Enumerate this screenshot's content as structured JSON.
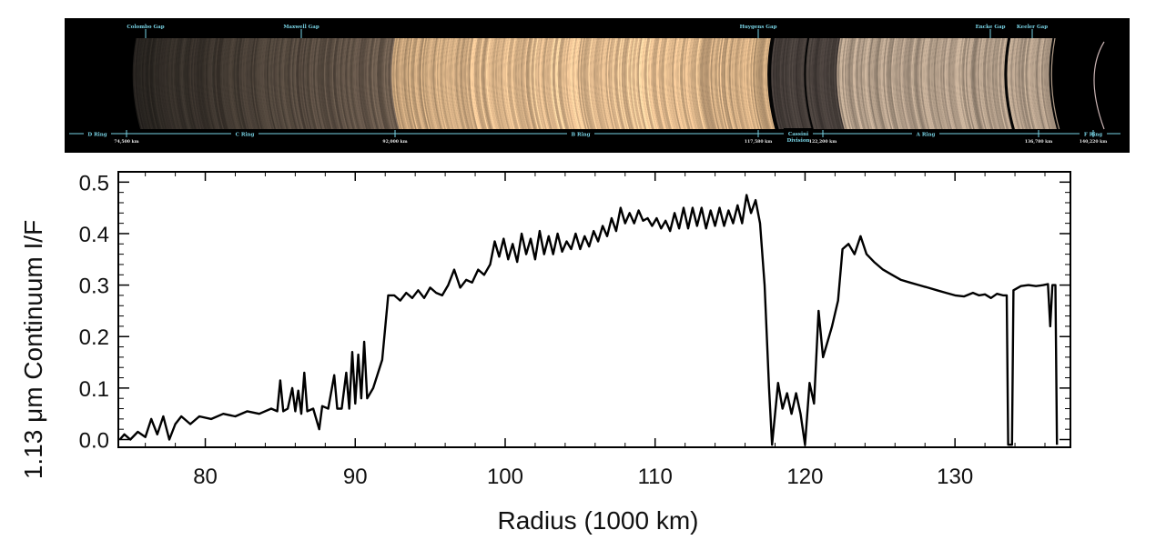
{
  "ring_image": {
    "gaps": [
      {
        "label": "Colombo Gap",
        "x": 77.8
      },
      {
        "label": "Maxwell Gap",
        "x": 87.5
      },
      {
        "label": "Huygens Gap",
        "x": 117.7
      },
      {
        "label": "Encke Gap",
        "x": 133.6
      },
      {
        "label": "Keeler Gap",
        "x": 136.5
      }
    ],
    "rings": [
      {
        "label": "D Ring",
        "x": 74.2
      },
      {
        "label": "C Ring",
        "x": 83.5
      },
      {
        "label": "B Ring",
        "x": 104.5
      },
      {
        "label": "Cassini Division",
        "x": 119.2
      },
      {
        "label": "A Ring",
        "x": 129.5
      },
      {
        "label": "F Ring",
        "x": 140.2
      }
    ],
    "radius_marks": [
      {
        "label": "74,500 km",
        "x": 74.5
      },
      {
        "label": "92,000 km",
        "x": 92.0
      },
      {
        "label": "117,580 km",
        "x": 117.58
      },
      {
        "label": "122,200 km",
        "x": 122.2
      },
      {
        "label": "136,780 km",
        "x": 136.78
      },
      {
        "label": "140,220 km",
        "x": 140.22
      }
    ],
    "colors": {
      "background": "#000000",
      "label": "#79d4e6",
      "tick_label": "#e8e8e8"
    }
  },
  "chart_data": {
    "type": "line",
    "xlabel": "Radius (1000 km)",
    "ylabel": "1.13 μm Continuum I/F",
    "xlim": [
      74.2,
      137.7
    ],
    "ylim": [
      -0.015,
      0.52
    ],
    "xticks": [
      80,
      90,
      100,
      110,
      120,
      130
    ],
    "yticks": [
      0.0,
      0.1,
      0.2,
      0.3,
      0.4,
      0.5
    ],
    "ytick_labels": [
      "0.0",
      "0.1",
      "0.2",
      "0.3",
      "0.4",
      "0.5"
    ],
    "grid": false,
    "series": [
      {
        "color": "#000000",
        "points": [
          [
            74.3,
            0.0
          ],
          [
            74.6,
            0.01
          ],
          [
            75.0,
            0.0
          ],
          [
            75.5,
            0.015
          ],
          [
            76.0,
            0.005
          ],
          [
            76.4,
            0.04
          ],
          [
            76.8,
            0.01
          ],
          [
            77.2,
            0.045
          ],
          [
            77.6,
            0.0
          ],
          [
            78.0,
            0.03
          ],
          [
            78.4,
            0.045
          ],
          [
            79.0,
            0.03
          ],
          [
            79.6,
            0.045
          ],
          [
            80.4,
            0.04
          ],
          [
            81.2,
            0.05
          ],
          [
            82.0,
            0.045
          ],
          [
            82.8,
            0.055
          ],
          [
            83.6,
            0.05
          ],
          [
            84.4,
            0.06
          ],
          [
            84.8,
            0.055
          ],
          [
            85.0,
            0.115
          ],
          [
            85.2,
            0.055
          ],
          [
            85.5,
            0.06
          ],
          [
            85.8,
            0.1
          ],
          [
            86.0,
            0.055
          ],
          [
            86.2,
            0.095
          ],
          [
            86.4,
            0.05
          ],
          [
            86.6,
            0.13
          ],
          [
            86.8,
            0.055
          ],
          [
            87.2,
            0.06
          ],
          [
            87.6,
            0.02
          ],
          [
            87.8,
            0.065
          ],
          [
            88.2,
            0.06
          ],
          [
            88.6,
            0.125
          ],
          [
            88.8,
            0.06
          ],
          [
            89.1,
            0.06
          ],
          [
            89.4,
            0.13
          ],
          [
            89.6,
            0.06
          ],
          [
            89.8,
            0.17
          ],
          [
            90.0,
            0.07
          ],
          [
            90.2,
            0.165
          ],
          [
            90.4,
            0.08
          ],
          [
            90.6,
            0.19
          ],
          [
            90.8,
            0.08
          ],
          [
            91.2,
            0.1
          ],
          [
            91.8,
            0.155
          ],
          [
            92.2,
            0.28
          ],
          [
            92.6,
            0.28
          ],
          [
            93.0,
            0.27
          ],
          [
            93.4,
            0.285
          ],
          [
            93.8,
            0.275
          ],
          [
            94.2,
            0.29
          ],
          [
            94.6,
            0.275
          ],
          [
            95.0,
            0.295
          ],
          [
            95.4,
            0.285
          ],
          [
            95.8,
            0.28
          ],
          [
            96.2,
            0.3
          ],
          [
            96.6,
            0.33
          ],
          [
            97.0,
            0.295
          ],
          [
            97.4,
            0.31
          ],
          [
            97.8,
            0.305
          ],
          [
            98.2,
            0.33
          ],
          [
            98.6,
            0.32
          ],
          [
            99.0,
            0.34
          ],
          [
            99.3,
            0.385
          ],
          [
            99.6,
            0.355
          ],
          [
            99.9,
            0.39
          ],
          [
            100.2,
            0.35
          ],
          [
            100.5,
            0.38
          ],
          [
            100.8,
            0.345
          ],
          [
            101.1,
            0.4
          ],
          [
            101.4,
            0.36
          ],
          [
            101.7,
            0.39
          ],
          [
            102.0,
            0.35
          ],
          [
            102.3,
            0.405
          ],
          [
            102.6,
            0.36
          ],
          [
            102.9,
            0.395
          ],
          [
            103.2,
            0.36
          ],
          [
            103.5,
            0.4
          ],
          [
            103.8,
            0.365
          ],
          [
            104.1,
            0.385
          ],
          [
            104.4,
            0.37
          ],
          [
            104.7,
            0.4
          ],
          [
            105.0,
            0.37
          ],
          [
            105.3,
            0.395
          ],
          [
            105.6,
            0.375
          ],
          [
            105.9,
            0.405
          ],
          [
            106.2,
            0.385
          ],
          [
            106.5,
            0.415
          ],
          [
            106.8,
            0.395
          ],
          [
            107.1,
            0.43
          ],
          [
            107.4,
            0.405
          ],
          [
            107.7,
            0.45
          ],
          [
            108.0,
            0.42
          ],
          [
            108.3,
            0.44
          ],
          [
            108.6,
            0.42
          ],
          [
            108.9,
            0.445
          ],
          [
            109.2,
            0.425
          ],
          [
            109.5,
            0.43
          ],
          [
            109.8,
            0.415
          ],
          [
            110.1,
            0.43
          ],
          [
            110.4,
            0.41
          ],
          [
            110.7,
            0.425
          ],
          [
            111.0,
            0.405
          ],
          [
            111.3,
            0.44
          ],
          [
            111.6,
            0.41
          ],
          [
            111.9,
            0.45
          ],
          [
            112.2,
            0.41
          ],
          [
            112.5,
            0.45
          ],
          [
            112.8,
            0.415
          ],
          [
            113.1,
            0.45
          ],
          [
            113.4,
            0.41
          ],
          [
            113.7,
            0.445
          ],
          [
            114.0,
            0.415
          ],
          [
            114.3,
            0.45
          ],
          [
            114.6,
            0.415
          ],
          [
            114.9,
            0.445
          ],
          [
            115.2,
            0.42
          ],
          [
            115.5,
            0.455
          ],
          [
            115.8,
            0.42
          ],
          [
            116.1,
            0.475
          ],
          [
            116.4,
            0.44
          ],
          [
            116.7,
            0.465
          ],
          [
            117.0,
            0.42
          ],
          [
            117.3,
            0.3
          ],
          [
            117.6,
            0.1
          ],
          [
            117.8,
            -0.01
          ],
          [
            118.0,
            0.05
          ],
          [
            118.2,
            0.11
          ],
          [
            118.5,
            0.06
          ],
          [
            118.8,
            0.09
          ],
          [
            119.1,
            0.05
          ],
          [
            119.4,
            0.09
          ],
          [
            119.7,
            0.05
          ],
          [
            120.0,
            -0.01
          ],
          [
            120.3,
            0.11
          ],
          [
            120.6,
            0.07
          ],
          [
            120.9,
            0.25
          ],
          [
            121.2,
            0.16
          ],
          [
            121.8,
            0.22
          ],
          [
            122.2,
            0.27
          ],
          [
            122.5,
            0.37
          ],
          [
            122.9,
            0.38
          ],
          [
            123.3,
            0.36
          ],
          [
            123.7,
            0.395
          ],
          [
            124.1,
            0.36
          ],
          [
            124.6,
            0.345
          ],
          [
            125.2,
            0.33
          ],
          [
            125.8,
            0.32
          ],
          [
            126.4,
            0.31
          ],
          [
            127.0,
            0.305
          ],
          [
            127.6,
            0.3
          ],
          [
            128.2,
            0.295
          ],
          [
            128.8,
            0.29
          ],
          [
            129.4,
            0.285
          ],
          [
            130.0,
            0.28
          ],
          [
            130.6,
            0.278
          ],
          [
            131.2,
            0.285
          ],
          [
            131.6,
            0.28
          ],
          [
            132.0,
            0.282
          ],
          [
            132.4,
            0.275
          ],
          [
            132.8,
            0.283
          ],
          [
            133.2,
            0.28
          ],
          [
            133.45,
            0.28
          ],
          [
            133.55,
            -0.01
          ],
          [
            133.8,
            -0.01
          ],
          [
            133.9,
            0.29
          ],
          [
            134.4,
            0.298
          ],
          [
            134.9,
            0.3
          ],
          [
            135.4,
            0.298
          ],
          [
            135.9,
            0.3
          ],
          [
            136.2,
            0.302
          ],
          [
            136.35,
            0.22
          ],
          [
            136.5,
            0.3
          ],
          [
            136.7,
            0.3
          ],
          [
            136.8,
            -0.01
          ]
        ]
      }
    ]
  }
}
